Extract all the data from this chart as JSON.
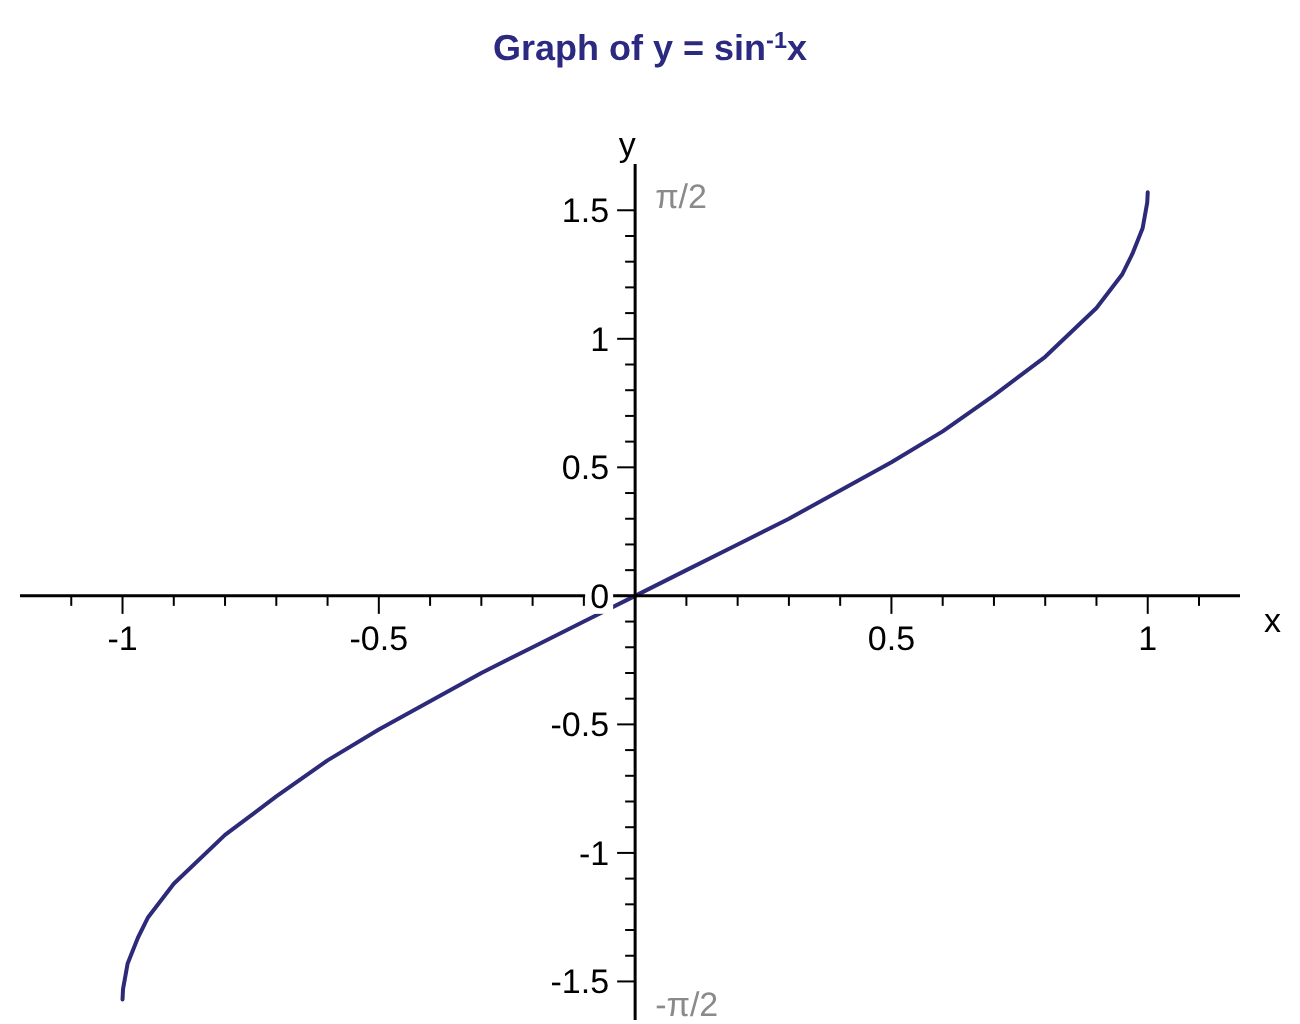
{
  "chart_data": {
    "type": "line",
    "title": "Graph of y = sin$^{-1}$x",
    "xlabel": "x",
    "ylabel": "y",
    "xlim": [
      -1.2,
      1.18
    ],
    "ylim": [
      -1.65,
      1.68
    ],
    "xticks": [
      {
        "value": -1.1,
        "label": null
      },
      -1,
      {
        "value": -0.9,
        "label": null
      },
      {
        "value": -0.8,
        "label": null
      },
      {
        "value": -0.7,
        "label": null
      },
      {
        "value": -0.6,
        "label": null
      },
      -0.5,
      {
        "value": -0.4,
        "label": null
      },
      {
        "value": -0.3,
        "label": null
      },
      {
        "value": -0.2,
        "label": null
      },
      {
        "value": -0.1,
        "label": null
      },
      {
        "value": 0.1,
        "label": null
      },
      {
        "value": 0.2,
        "label": null
      },
      {
        "value": 0.3,
        "label": null
      },
      {
        "value": 0.4,
        "label": null
      },
      0.5,
      {
        "value": 0.6,
        "label": null
      },
      {
        "value": 0.7,
        "label": null
      },
      {
        "value": 0.8,
        "label": null
      },
      {
        "value": 0.9,
        "label": null
      },
      1,
      {
        "value": 1.1,
        "label": null
      }
    ],
    "yticks": [
      -1.5,
      {
        "value": -1.4,
        "label": null
      },
      {
        "value": -1.3,
        "label": null
      },
      {
        "value": -1.2,
        "label": null
      },
      {
        "value": -1.1,
        "label": null
      },
      -1,
      {
        "value": -0.9,
        "label": null
      },
      {
        "value": -0.8,
        "label": null
      },
      {
        "value": -0.7,
        "label": null
      },
      {
        "value": -0.6,
        "label": null
      },
      -0.5,
      {
        "value": -0.4,
        "label": null
      },
      {
        "value": -0.3,
        "label": null
      },
      {
        "value": -0.2,
        "label": null
      },
      {
        "value": -0.1,
        "label": null
      },
      0,
      {
        "value": 0.1,
        "label": null
      },
      {
        "value": 0.2,
        "label": null
      },
      {
        "value": 0.3,
        "label": null
      },
      {
        "value": 0.4,
        "label": null
      },
      0.5,
      {
        "value": 0.6,
        "label": null
      },
      {
        "value": 0.7,
        "label": null
      },
      {
        "value": 0.8,
        "label": null
      },
      {
        "value": 0.9,
        "label": null
      },
      1,
      {
        "value": 1.1,
        "label": null
      },
      {
        "value": 1.2,
        "label": null
      },
      {
        "value": 1.3,
        "label": null
      },
      {
        "value": 1.4,
        "label": null
      },
      1.5
    ],
    "x": [
      -1,
      -0.999,
      -0.99,
      -0.97,
      -0.95,
      -0.9,
      -0.8,
      -0.7,
      -0.6,
      -0.5,
      -0.4,
      -0.3,
      -0.2,
      -0.1,
      0,
      0.1,
      0.2,
      0.3,
      0.4,
      0.5,
      0.6,
      0.7,
      0.8,
      0.9,
      0.95,
      0.97,
      0.99,
      0.999,
      1
    ],
    "series": [
      {
        "color": "#2e2a7a",
        "values": [
          -1.57,
          -1.53,
          -1.43,
          -1.33,
          -1.25,
          -1.12,
          -0.93,
          -0.78,
          -0.64,
          -0.52,
          -0.41,
          -0.3,
          -0.2,
          -0.1,
          0,
          0.1,
          0.2,
          0.3,
          0.41,
          0.52,
          0.64,
          0.78,
          0.93,
          1.12,
          1.25,
          1.33,
          1.43,
          1.53,
          1.57
        ]
      }
    ],
    "annotations": [
      "π/2",
      "-π/2"
    ],
    "grid": false,
    "marker": "none",
    "line_style": "solid"
  }
}
